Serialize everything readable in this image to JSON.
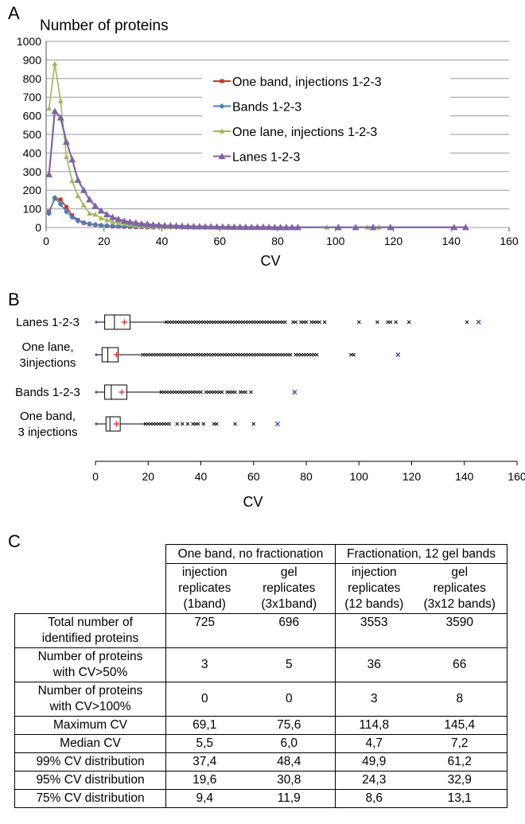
{
  "panelA": {
    "letter": "A",
    "title": "Number of proteins",
    "xlabel": "CV",
    "yticks": [
      "0",
      "100",
      "200",
      "300",
      "400",
      "500",
      "600",
      "700",
      "800",
      "900",
      "1000"
    ],
    "xticks": [
      "0",
      "20",
      "40",
      "60",
      "80",
      "100",
      "120",
      "140",
      "160"
    ]
  },
  "panelB": {
    "letter": "B",
    "xlabel": "CV",
    "xticks": [
      "0",
      "20",
      "40",
      "60",
      "80",
      "100",
      "120",
      "140",
      "160"
    ],
    "rows": [
      {
        "label_lines": [
          "Lanes 1-2-3"
        ]
      },
      {
        "label_lines": [
          "One lane,",
          "3injections"
        ]
      },
      {
        "label_lines": [
          "Bands 1-2-3"
        ]
      },
      {
        "label_lines": [
          "One band,",
          "3 injections"
        ]
      }
    ]
  },
  "panelC": {
    "letter": "C",
    "group1": "One band, no fractionation",
    "group2": "Fractionation, 12 gel bands",
    "columns": [
      {
        "l1": "injection",
        "l2": "replicates",
        "l3": "(1band)"
      },
      {
        "l1": "gel",
        "l2": "replicates",
        "l3": "(3x1band)"
      },
      {
        "l1": "injection",
        "l2": "replicates",
        "l3": "(12 bands)"
      },
      {
        "l1": "gel",
        "l2": "replicates",
        "l3": "(3x12 bands)"
      }
    ],
    "rows": [
      {
        "l1": "Total number  of",
        "l2": "identified proteins",
        "v": [
          "725",
          "696",
          "3553",
          "3590"
        ]
      },
      {
        "l1": "Number of proteins",
        "l2": "with CV>50%",
        "v": [
          "3",
          "5",
          "36",
          "66"
        ]
      },
      {
        "l1": "Number of  proteins",
        "l2": "with CV>100%",
        "v": [
          "0",
          "0",
          "3",
          "8"
        ]
      },
      {
        "l1": "Maximum CV",
        "v": [
          "69,1",
          "75,6",
          "114,8",
          "145,4"
        ]
      },
      {
        "l1": "Median CV",
        "v": [
          "5,5",
          "6,0",
          "4,7",
          "7,2"
        ]
      },
      {
        "l1": "99% CV distribution",
        "v": [
          "37,4",
          "48,4",
          "49,9",
          "61,2"
        ]
      },
      {
        "l1": "95% CV distribution",
        "v": [
          "19,6",
          "30,8",
          "24,3",
          "32,9"
        ]
      },
      {
        "l1": "75% CV distribution",
        "v": [
          "9,4",
          "11,9",
          "8,6",
          "13,1"
        ]
      }
    ]
  },
  "chart_data": [
    {
      "type": "line",
      "title": "Number of proteins",
      "xlabel": "CV",
      "ylabel": "",
      "xlim": [
        0,
        160
      ],
      "ylim": [
        0,
        1000
      ],
      "grid": true,
      "legend": "center-right",
      "series": [
        {
          "name": "One band, injections 1-2-3",
          "color": "#c0392b",
          "marker": "square",
          "x": [
            1,
            3,
            5,
            7,
            9,
            11,
            13,
            15,
            17,
            19,
            21,
            23,
            25,
            27,
            29,
            31,
            33,
            35,
            37
          ],
          "y": [
            85,
            155,
            150,
            110,
            65,
            40,
            25,
            18,
            14,
            10,
            8,
            6,
            5,
            4,
            3,
            2,
            2,
            1,
            1
          ]
        },
        {
          "name": "Bands 1-2-3",
          "color": "#4a7ebb",
          "marker": "diamond",
          "x": [
            1,
            3,
            5,
            7,
            9,
            11,
            13,
            15,
            17,
            19,
            21,
            23,
            25,
            27,
            29,
            31,
            33,
            35,
            37,
            39,
            41,
            43,
            45,
            47,
            49,
            51,
            53,
            55,
            57,
            59,
            61,
            63,
            65,
            67,
            69,
            71,
            73,
            75
          ],
          "y": [
            75,
            160,
            125,
            85,
            55,
            35,
            25,
            20,
            15,
            12,
            10,
            8,
            7,
            6,
            5,
            4,
            3,
            3,
            2,
            2,
            2,
            2,
            1,
            1,
            1,
            1,
            1,
            1,
            1,
            1,
            1,
            1,
            1,
            1,
            1,
            1,
            1,
            1
          ]
        },
        {
          "name": "One lane, injections 1-2-3",
          "color": "#9bbb59",
          "marker": "triangle",
          "x": [
            1,
            3,
            5,
            7,
            9,
            11,
            13,
            15,
            17,
            19,
            21,
            23,
            25,
            27,
            29,
            31,
            33,
            35,
            37,
            39,
            41,
            43,
            45,
            47,
            49,
            51,
            53,
            55,
            57,
            59,
            61,
            63,
            65,
            67,
            69,
            71,
            73,
            75,
            77,
            79,
            81,
            83,
            85,
            97,
            101,
            107,
            111,
            113,
            115
          ],
          "y": [
            640,
            880,
            680,
            380,
            250,
            170,
            120,
            75,
            70,
            50,
            40,
            30,
            25,
            20,
            15,
            12,
            10,
            8,
            7,
            6,
            5,
            5,
            4,
            4,
            3,
            3,
            3,
            2,
            2,
            2,
            2,
            2,
            1,
            1,
            1,
            1,
            1,
            1,
            1,
            1,
            1,
            1,
            1,
            1,
            1,
            1,
            1,
            1,
            1
          ]
        },
        {
          "name": "Lanes 1-2-3",
          "color": "#8064a2",
          "marker": "triangle",
          "x": [
            1,
            3,
            5,
            7,
            9,
            11,
            13,
            15,
            17,
            19,
            21,
            23,
            25,
            27,
            29,
            31,
            33,
            35,
            37,
            39,
            41,
            43,
            45,
            47,
            49,
            51,
            53,
            55,
            57,
            59,
            61,
            63,
            65,
            67,
            69,
            71,
            73,
            75,
            77,
            79,
            81,
            83,
            85,
            87,
            101,
            107,
            113,
            119,
            141,
            145
          ],
          "y": [
            285,
            625,
            590,
            460,
            365,
            255,
            200,
            150,
            115,
            90,
            70,
            55,
            45,
            35,
            30,
            25,
            20,
            18,
            15,
            13,
            11,
            10,
            9,
            8,
            7,
            6,
            6,
            5,
            5,
            4,
            4,
            3,
            3,
            3,
            2,
            2,
            2,
            2,
            2,
            1,
            1,
            1,
            1,
            1,
            1,
            1,
            1,
            1,
            1,
            1
          ]
        }
      ]
    },
    {
      "type": "box",
      "xlabel": "CV",
      "xlim": [
        0,
        160
      ],
      "series": [
        {
          "name": "Lanes 1-2-3",
          "min": 0.3,
          "q1": 3.5,
          "median": 7.2,
          "q3": 13.1,
          "mean": 11,
          "whisker_high": 27,
          "outliers": [
            27,
            28,
            29,
            30,
            31,
            32,
            33,
            34,
            35,
            36,
            37,
            38,
            39,
            40,
            41,
            42,
            43,
            44,
            45,
            46,
            47,
            48,
            49,
            50,
            51,
            52,
            53,
            54,
            55,
            56,
            57,
            58,
            59,
            60,
            61,
            62,
            63,
            64,
            65,
            66,
            67,
            68,
            69,
            70,
            71,
            72,
            75,
            76,
            78,
            79,
            80,
            82,
            83,
            84,
            85,
            87,
            100,
            107,
            111,
            112,
            114,
            119,
            141,
            145.4
          ]
        },
        {
          "name": "One lane, 3injections",
          "min": 0.3,
          "q1": 2.5,
          "median": 4.7,
          "q3": 8.6,
          "mean": 8,
          "whisker_high": 17.5,
          "outliers": [
            18,
            19,
            20,
            21,
            22,
            23,
            24,
            25,
            26,
            27,
            28,
            29,
            30,
            31,
            32,
            33,
            34,
            35,
            36,
            37,
            38,
            39,
            40,
            41,
            42,
            43,
            44,
            45,
            46,
            47,
            48,
            49,
            50,
            51,
            52,
            53,
            54,
            55,
            56,
            57,
            58,
            59,
            60,
            61,
            62,
            63,
            64,
            65,
            66,
            67,
            68,
            69,
            70,
            71,
            72,
            73,
            74,
            76,
            77,
            78,
            79,
            80,
            81,
            82,
            83,
            84,
            97,
            98,
            114.8
          ]
        },
        {
          "name": "Bands 1-2-3",
          "min": 0.3,
          "q1": 3.5,
          "median": 6.0,
          "q3": 11.9,
          "mean": 10,
          "whisker_high": 25,
          "outliers": [
            25,
            26,
            27,
            28,
            29,
            30,
            31,
            32,
            33,
            34,
            35,
            36,
            37,
            38,
            39,
            40,
            42,
            43,
            44,
            45,
            46,
            47,
            48,
            50,
            51,
            52,
            53,
            55,
            56,
            57,
            59,
            75.6
          ]
        },
        {
          "name": "One band, 3 injections",
          "min": 0.3,
          "q1": 4.0,
          "median": 5.5,
          "q3": 9.4,
          "mean": 8,
          "whisker_high": 19,
          "outliers": [
            19,
            20,
            21,
            22,
            23,
            24,
            25,
            26,
            27,
            28,
            31,
            33,
            35,
            37,
            38,
            39,
            41,
            45,
            46,
            53,
            60,
            69.1
          ]
        }
      ]
    }
  ]
}
